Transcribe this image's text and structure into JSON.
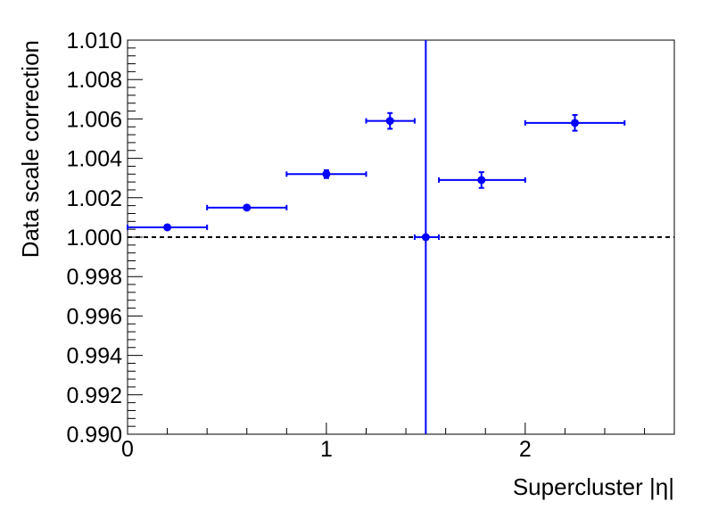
{
  "chart_data": {
    "type": "scatter",
    "xlabel": "Supercluster |η|",
    "ylabel": "Data scale correction",
    "xlim": [
      0,
      2.75
    ],
    "ylim": [
      0.99,
      1.01
    ],
    "x_ticks": [
      0,
      1,
      2
    ],
    "x_tick_labels": [
      "0",
      "1",
      "2"
    ],
    "y_ticks": [
      0.99,
      0.992,
      0.994,
      0.996,
      0.998,
      1.0,
      1.002,
      1.004,
      1.006,
      1.008,
      1.01
    ],
    "y_tick_labels": [
      "0.990",
      "0.992",
      "0.994",
      "0.996",
      "0.998",
      "1.000",
      "1.002",
      "1.004",
      "1.006",
      "1.008",
      "1.010"
    ],
    "reference_line": {
      "y": 1.0,
      "style": "dashed"
    },
    "grid": false,
    "series": [
      {
        "color": "#0000ff",
        "points": [
          {
            "x": 0.2,
            "x_low": 0.0,
            "x_high": 0.4,
            "y": 1.0005,
            "y_low": 1.00045,
            "y_high": 1.00055
          },
          {
            "x": 0.6,
            "x_low": 0.4,
            "x_high": 0.8,
            "y": 1.0015,
            "y_low": 1.0014,
            "y_high": 1.0016
          },
          {
            "x": 1.0,
            "x_low": 0.8,
            "x_high": 1.2,
            "y": 1.0032,
            "y_low": 1.003,
            "y_high": 1.0034
          },
          {
            "x": 1.32,
            "x_low": 1.2,
            "x_high": 1.4442,
            "y": 1.0059,
            "y_low": 1.0055,
            "y_high": 1.0063
          },
          {
            "x": 1.5,
            "x_low": 1.4442,
            "x_high": 1.566,
            "y": 1.0,
            "y_low": 0.99,
            "y_high": 1.01
          },
          {
            "x": 1.78,
            "x_low": 1.566,
            "x_high": 2.0,
            "y": 1.0029,
            "y_low": 1.0025,
            "y_high": 1.0033
          },
          {
            "x": 2.25,
            "x_low": 2.0,
            "x_high": 2.5,
            "y": 1.0058,
            "y_low": 1.0054,
            "y_high": 1.0062
          }
        ]
      }
    ]
  }
}
